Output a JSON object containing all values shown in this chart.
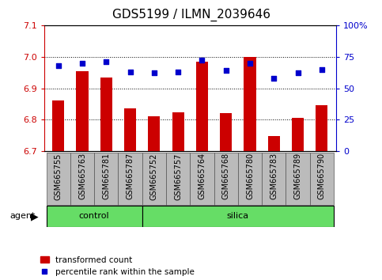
{
  "title": "GDS5199 / ILMN_2039646",
  "samples": [
    "GSM665755",
    "GSM665763",
    "GSM665781",
    "GSM665787",
    "GSM665752",
    "GSM665757",
    "GSM665764",
    "GSM665768",
    "GSM665780",
    "GSM665783",
    "GSM665789",
    "GSM665790"
  ],
  "groups": [
    "control",
    "control",
    "control",
    "control",
    "silica",
    "silica",
    "silica",
    "silica",
    "silica",
    "silica",
    "silica",
    "silica"
  ],
  "transformed_count": [
    6.862,
    6.955,
    6.933,
    6.835,
    6.81,
    6.823,
    6.985,
    6.822,
    7.0,
    6.747,
    6.805,
    6.847
  ],
  "percentile_rank": [
    68,
    70,
    71,
    63,
    62,
    63,
    72,
    64,
    70,
    58,
    62,
    65
  ],
  "ylim_left": [
    6.7,
    7.1
  ],
  "ylim_right": [
    0,
    100
  ],
  "yticks_left": [
    6.7,
    6.8,
    6.9,
    7.0,
    7.1
  ],
  "yticks_right": [
    0,
    25,
    50,
    75,
    100
  ],
  "ytick_labels_right": [
    "0",
    "25",
    "50",
    "75",
    "100%"
  ],
  "bar_color": "#cc0000",
  "dot_color": "#0000cc",
  "grid_color": "#000000",
  "group_color": "#66dd66",
  "xtick_bg_color": "#bbbbbb",
  "agent_label": "agent",
  "control_label": "control",
  "silica_label": "silica",
  "legend_bar_label": "transformed count",
  "legend_dot_label": "percentile rank within the sample",
  "bar_width": 0.5,
  "title_fontsize": 11,
  "tick_fontsize": 8,
  "xtick_fontsize": 7,
  "axis_color_left": "#cc0000",
  "axis_color_right": "#0000cc",
  "control_count": 4,
  "n_samples": 12
}
